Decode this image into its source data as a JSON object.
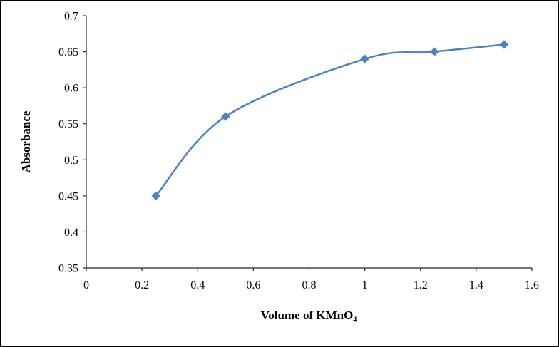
{
  "frame": {
    "background": "#ffffff",
    "border_color": "#000000",
    "axis_color": "#262626"
  },
  "chart_data": {
    "type": "line",
    "title": "",
    "xlabel": "Volume of KMnO₄",
    "ylabel": "Absorbance",
    "x": [
      0.25,
      0.5,
      1,
      1.25,
      1.5
    ],
    "series": [
      {
        "name": "Absorbance",
        "values": [
          0.45,
          0.56,
          0.64,
          0.65,
          0.66
        ],
        "color": "#4f81bd",
        "marker": "diamond",
        "smooth": true,
        "line_width": 2.5
      }
    ],
    "xlim": [
      0,
      1.6
    ],
    "ylim": [
      0.35,
      0.7
    ],
    "x_ticks": [
      0,
      0.2,
      0.4,
      0.6,
      0.8,
      1,
      1.2,
      1.4,
      1.6
    ],
    "x_tick_labels": [
      "0",
      "0.2",
      "0.4",
      "0.6",
      "0.8",
      "1",
      "1.2",
      "1.4",
      "1.6"
    ],
    "y_ticks": [
      0.35,
      0.4,
      0.45,
      0.5,
      0.55,
      0.6,
      0.65,
      0.7
    ],
    "y_tick_labels": [
      "0.35",
      "0.4",
      "0.45",
      "0.5",
      "0.55",
      "0.6",
      "0.65",
      "0.7"
    ],
    "grid": false,
    "legend": "none"
  }
}
